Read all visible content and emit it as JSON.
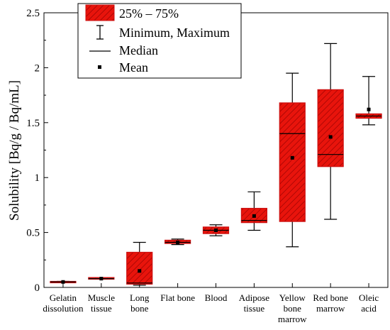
{
  "chart_data": {
    "type": "box",
    "ylabel": "Solubility [Bq/g / Bq/mL]",
    "ylim": [
      0,
      2.5
    ],
    "yticks": [
      "0",
      "0.5",
      "1",
      "1.5",
      "2",
      "2.5"
    ],
    "categories": [
      [
        "Gelatin",
        "dissolution"
      ],
      [
        "Muscle",
        "tissue"
      ],
      [
        "Long",
        "bone"
      ],
      [
        "Flat bone"
      ],
      [
        "Blood"
      ],
      [
        "Adipose",
        "tissue"
      ],
      [
        "Yellow",
        "bone",
        "marrow"
      ],
      [
        "Red bone",
        "marrow"
      ],
      [
        "Oleic",
        "acid"
      ]
    ],
    "boxes": [
      {
        "min": 0.045,
        "q1": 0.045,
        "median": 0.05,
        "q3": 0.055,
        "max": 0.055,
        "mean": 0.05
      },
      {
        "min": 0.075,
        "q1": 0.075,
        "median": 0.08,
        "q3": 0.09,
        "max": 0.09,
        "mean": 0.08
      },
      {
        "min": 0.02,
        "q1": 0.03,
        "median": 0.04,
        "q3": 0.32,
        "max": 0.41,
        "mean": 0.15
      },
      {
        "min": 0.39,
        "q1": 0.4,
        "median": 0.41,
        "q3": 0.43,
        "max": 0.44,
        "mean": 0.41
      },
      {
        "min": 0.47,
        "q1": 0.49,
        "median": 0.52,
        "q3": 0.55,
        "max": 0.57,
        "mean": 0.52
      },
      {
        "min": 0.52,
        "q1": 0.59,
        "median": 0.61,
        "q3": 0.72,
        "max": 0.87,
        "mean": 0.65
      },
      {
        "min": 0.37,
        "q1": 0.6,
        "median": 1.4,
        "q3": 1.68,
        "max": 1.95,
        "mean": 1.18
      },
      {
        "min": 0.62,
        "q1": 1.1,
        "median": 1.21,
        "q3": 1.8,
        "max": 2.22,
        "mean": 1.37
      },
      {
        "min": 1.48,
        "q1": 1.54,
        "median": 1.56,
        "q3": 1.58,
        "max": 1.92,
        "mean": 1.62
      }
    ],
    "legend": {
      "position": "top-center",
      "entries": [
        "25% – 75%",
        "Minimum, Maximum",
        "Median",
        "Mean"
      ]
    },
    "colors": {
      "box_fill": "#e8140c",
      "box_edge": "#cc1010",
      "hatch": "#8a0000",
      "whisker": "#000000"
    }
  }
}
